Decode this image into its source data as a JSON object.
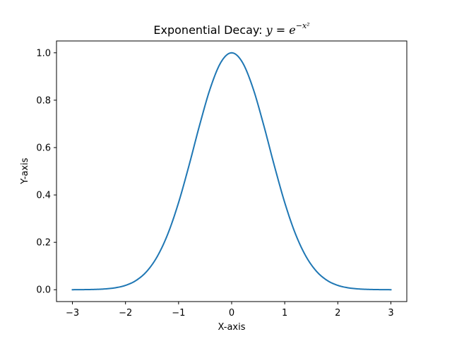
{
  "chart_data": {
    "type": "line",
    "title": "Exponential Decay: ",
    "title_math": {
      "lhs": "y",
      "eq": " = ",
      "base": "e",
      "exponent": "−x²"
    },
    "xlabel": "X-axis",
    "ylabel": "Y-axis",
    "xlim": [
      -3.3,
      3.3
    ],
    "ylim": [
      -0.05,
      1.05
    ],
    "x_ticks": [
      -3,
      -2,
      -1,
      0,
      1,
      2,
      3
    ],
    "x_tick_labels": [
      "−3",
      "−2",
      "−1",
      "0",
      "1",
      "2",
      "3"
    ],
    "y_ticks": [
      0.0,
      0.2,
      0.4,
      0.6,
      0.8,
      1.0
    ],
    "y_tick_labels": [
      "0.0",
      "0.2",
      "0.4",
      "0.6",
      "0.8",
      "1.0"
    ],
    "grid": false,
    "series": [
      {
        "color": "#1f77b4",
        "x": [
          -3.0,
          -2.8,
          -2.6,
          -2.4,
          -2.2,
          -2.0,
          -1.8,
          -1.6,
          -1.4,
          -1.2,
          -1.0,
          -0.8,
          -0.6,
          -0.4,
          -0.2,
          0.0,
          0.2,
          0.4,
          0.6,
          0.8,
          1.0,
          1.2,
          1.4,
          1.6,
          1.8,
          2.0,
          2.2,
          2.4,
          2.6,
          2.8,
          3.0
        ],
        "y": [
          0.0001,
          0.0004,
          0.0012,
          0.0032,
          0.0079,
          0.0183,
          0.0392,
          0.0773,
          0.1409,
          0.2369,
          0.3679,
          0.5273,
          0.6977,
          0.8521,
          0.9608,
          1.0,
          0.9608,
          0.8521,
          0.6977,
          0.5273,
          0.3679,
          0.2369,
          0.1409,
          0.0773,
          0.0392,
          0.0183,
          0.0079,
          0.0032,
          0.0012,
          0.0004,
          0.0001
        ]
      }
    ]
  }
}
